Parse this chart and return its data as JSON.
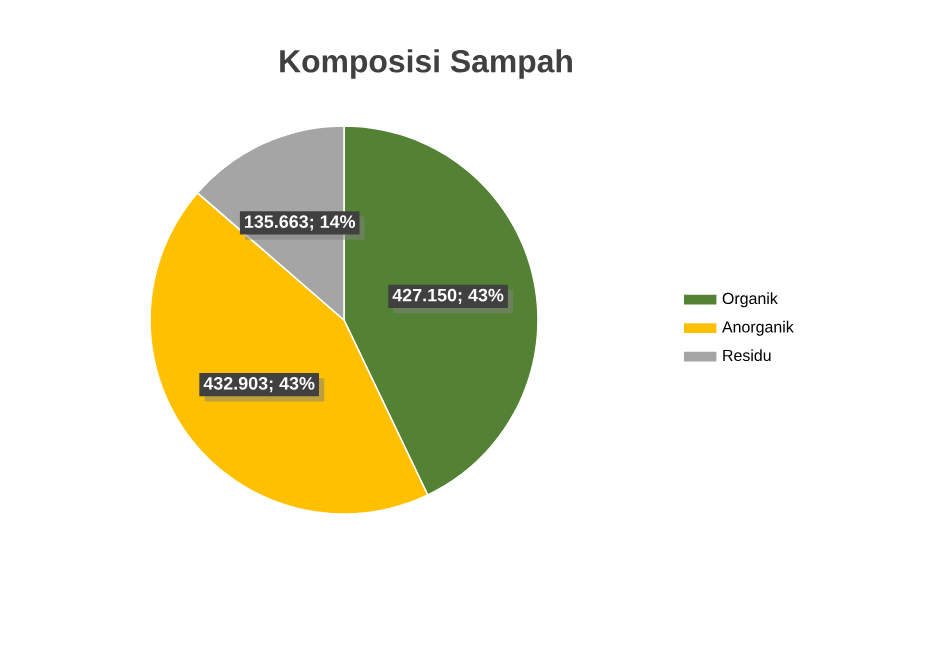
{
  "chart_data": {
    "type": "pie",
    "title": "Komposisi Sampah",
    "categories": [
      "Organik",
      "Anorganik",
      "Residu"
    ],
    "values": [
      427150,
      432903,
      135663
    ],
    "colors": [
      "#548235",
      "#ffc000",
      "#a5a5a5"
    ],
    "value_labels": [
      "427.150; 43%",
      "432.903; 43%",
      "135.663; 14%"
    ],
    "legend": "right"
  }
}
